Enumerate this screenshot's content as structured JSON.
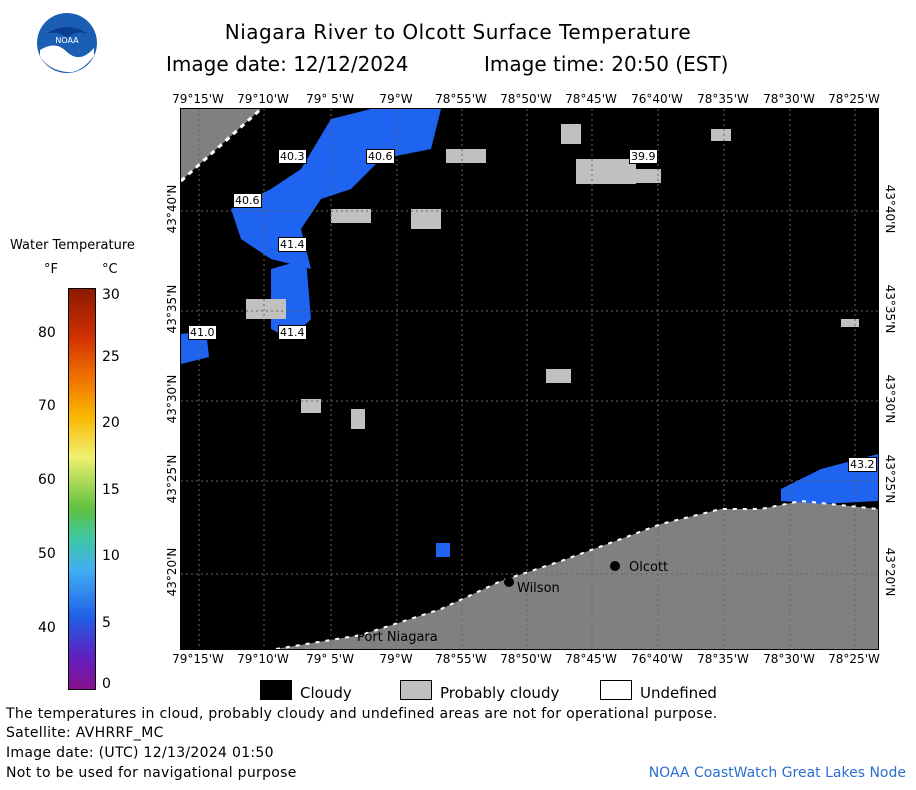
{
  "header": {
    "title": "Niagara River to Olcott Surface Temperature",
    "image_date": "Image date: 12/12/2024",
    "image_time": "Image time: 20:50 (EST)",
    "logo_text": "NOAA"
  },
  "map": {
    "lon_labels": [
      "79°15'W",
      "79°10'W",
      "79° 5'W",
      "79°W",
      "78°55'W",
      "78°50'W",
      "78°45'W",
      "76°40'W",
      "78°35'W",
      "78°30'W",
      "78°25'W"
    ],
    "lat_labels": [
      "43°40'N",
      "43°35'N",
      "43°30'N",
      "43°25'N",
      "43°20'N"
    ],
    "places": [
      {
        "name": "Olcott"
      },
      {
        "name": "Wilson"
      },
      {
        "name": "Port Niagara"
      }
    ],
    "temp_labels": [
      "40.3",
      "40.6",
      "39.9",
      "40.6",
      "41.4",
      "41.0",
      "41.4",
      "43.2"
    ],
    "colors": {
      "cloud": "#000000",
      "probably_cloudy": "#c0c0c0",
      "land": "#808080",
      "water_cold": "#1e64f0"
    }
  },
  "legend": {
    "title": "Water Temperature",
    "unit_f": "°F",
    "unit_c": "°C",
    "f_ticks": [
      "80",
      "70",
      "60",
      "50",
      "40"
    ],
    "c_ticks": [
      "30",
      "25",
      "20",
      "15",
      "10",
      "5",
      "0"
    ],
    "cloud_key": [
      "Cloudy",
      "Probably cloudy",
      "Undefined"
    ]
  },
  "footer": {
    "line1": "The temperatures in cloud, probably cloudy and undefined areas are not for operational purpose.",
    "line2": "Satellite: AVHRRF_MC",
    "line3": "Image date: (UTC) 12/13/2024  01:50",
    "line4": "Not to be used for navigational purpose",
    "credit": "NOAA CoastWatch Great Lakes Node"
  }
}
